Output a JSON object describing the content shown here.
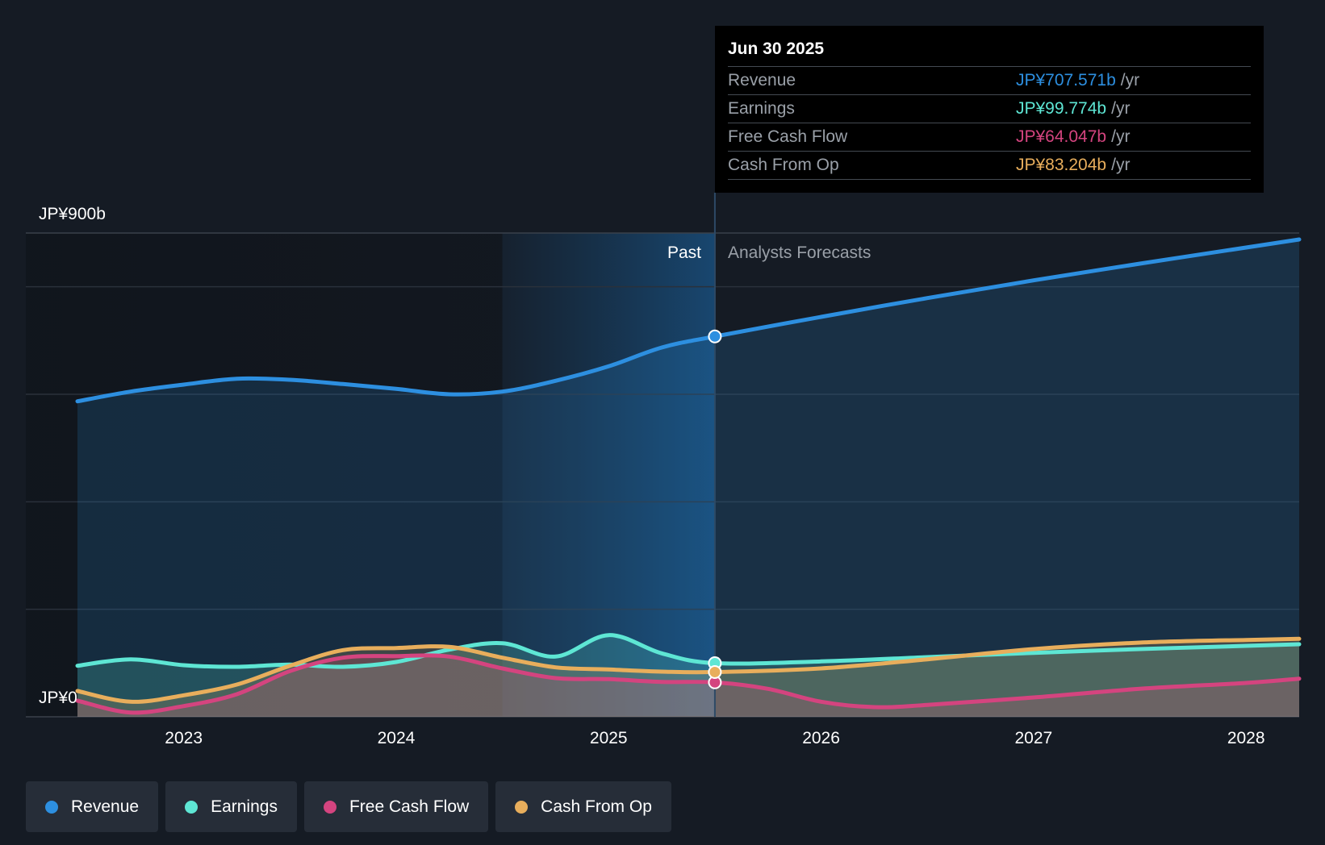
{
  "chart_data": {
    "type": "line",
    "title": "",
    "xlabel": "",
    "ylabel": "",
    "y_axis_labels": {
      "top": "JP¥900b",
      "bottom": "JP¥0"
    },
    "ylim": [
      0,
      900
    ],
    "xlim": [
      2022.5,
      2028.25
    ],
    "x_ticks": [
      "2023",
      "2024",
      "2025",
      "2026",
      "2027",
      "2028"
    ],
    "x_tick_values": [
      2023,
      2024,
      2025,
      2026,
      2027,
      2028
    ],
    "region_labels": {
      "past": "Past",
      "forecast": "Analysts Forecasts"
    },
    "past_end": 2025.5,
    "highlight_start": 2024.5,
    "series": [
      {
        "name": "Revenue",
        "color": "#2d8fe0",
        "points": [
          [
            2022.5,
            587
          ],
          [
            2022.75,
            605
          ],
          [
            2023.0,
            618
          ],
          [
            2023.25,
            629
          ],
          [
            2023.5,
            627
          ],
          [
            2023.75,
            619
          ],
          [
            2024.0,
            610
          ],
          [
            2024.25,
            600
          ],
          [
            2024.5,
            605
          ],
          [
            2024.75,
            625
          ],
          [
            2025.0,
            652
          ],
          [
            2025.25,
            687
          ],
          [
            2025.5,
            707.571
          ],
          [
            2026.0,
            744
          ],
          [
            2026.5,
            779
          ],
          [
            2027.0,
            812
          ],
          [
            2027.5,
            843
          ],
          [
            2028.0,
            873
          ],
          [
            2028.25,
            888
          ]
        ]
      },
      {
        "name": "Earnings",
        "color": "#5ee6d4",
        "points": [
          [
            2022.5,
            95
          ],
          [
            2022.75,
            107
          ],
          [
            2023.0,
            96
          ],
          [
            2023.25,
            93
          ],
          [
            2023.5,
            97
          ],
          [
            2023.75,
            93
          ],
          [
            2024.0,
            102
          ],
          [
            2024.25,
            125
          ],
          [
            2024.5,
            137
          ],
          [
            2024.75,
            112
          ],
          [
            2025.0,
            152
          ],
          [
            2025.25,
            118
          ],
          [
            2025.5,
            99.774
          ],
          [
            2026.0,
            103
          ],
          [
            2026.5,
            111
          ],
          [
            2027.0,
            119
          ],
          [
            2027.5,
            126
          ],
          [
            2028.0,
            132
          ],
          [
            2028.25,
            135
          ]
        ]
      },
      {
        "name": "Free Cash Flow",
        "color": "#d4447f",
        "points": [
          [
            2022.5,
            30
          ],
          [
            2022.75,
            8
          ],
          [
            2023.0,
            20
          ],
          [
            2023.25,
            42
          ],
          [
            2023.5,
            85
          ],
          [
            2023.75,
            110
          ],
          [
            2024.0,
            113
          ],
          [
            2024.25,
            112
          ],
          [
            2024.5,
            90
          ],
          [
            2024.75,
            72
          ],
          [
            2025.0,
            70
          ],
          [
            2025.25,
            65
          ],
          [
            2025.5,
            64.047
          ],
          [
            2025.75,
            52
          ],
          [
            2026.0,
            28
          ],
          [
            2026.25,
            18
          ],
          [
            2026.5,
            22
          ],
          [
            2027.0,
            36
          ],
          [
            2027.5,
            52
          ],
          [
            2028.0,
            63
          ],
          [
            2028.25,
            71
          ]
        ]
      },
      {
        "name": "Cash From Op",
        "color": "#e8ae5c",
        "points": [
          [
            2022.5,
            48
          ],
          [
            2022.75,
            28
          ],
          [
            2023.0,
            40
          ],
          [
            2023.25,
            60
          ],
          [
            2023.5,
            95
          ],
          [
            2023.75,
            124
          ],
          [
            2024.0,
            128
          ],
          [
            2024.25,
            130
          ],
          [
            2024.5,
            110
          ],
          [
            2024.75,
            92
          ],
          [
            2025.0,
            88
          ],
          [
            2025.25,
            84
          ],
          [
            2025.5,
            83.204
          ],
          [
            2026.0,
            90
          ],
          [
            2026.5,
            107
          ],
          [
            2027.0,
            126
          ],
          [
            2027.5,
            138
          ],
          [
            2028.0,
            143
          ],
          [
            2028.25,
            145
          ]
        ]
      }
    ]
  },
  "tooltip": {
    "date": "Jun 30 2025",
    "rows": [
      {
        "label": "Revenue",
        "value": "JP¥707.571b",
        "unit": "/yr",
        "color": "#2d8fe0"
      },
      {
        "label": "Earnings",
        "value": "JP¥99.774b",
        "unit": "/yr",
        "color": "#5ee6d4"
      },
      {
        "label": "Free Cash Flow",
        "value": "JP¥64.047b",
        "unit": "/yr",
        "color": "#d4447f"
      },
      {
        "label": "Cash From Op",
        "value": "JP¥83.204b",
        "unit": "/yr",
        "color": "#e8ae5c"
      }
    ]
  },
  "legend": [
    {
      "label": "Revenue",
      "color": "#2d8fe0"
    },
    {
      "label": "Earnings",
      "color": "#5ee6d4"
    },
    {
      "label": "Free Cash Flow",
      "color": "#d4447f"
    },
    {
      "label": "Cash From Op",
      "color": "#e8ae5c"
    }
  ]
}
